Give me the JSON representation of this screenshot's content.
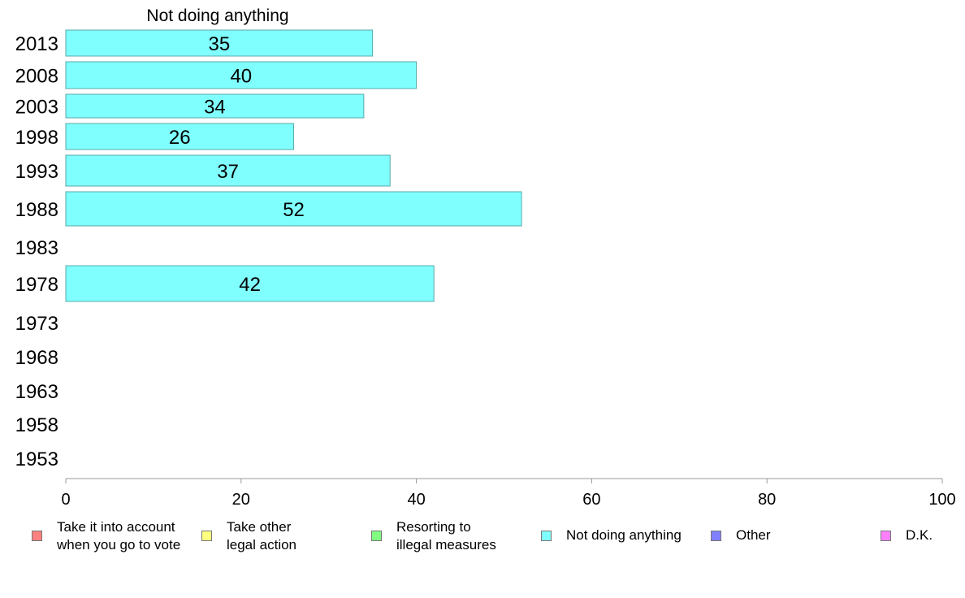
{
  "chart_data": {
    "type": "bar",
    "orientation": "horizontal",
    "title": "Not doing anything",
    "categories": [
      "2013",
      "2008",
      "2003",
      "1998",
      "1993",
      "1988",
      "1983",
      "1978",
      "1973",
      "1968",
      "1963",
      "1958",
      "1953"
    ],
    "series": [
      {
        "name": "Not doing anything",
        "color": "#80ffff",
        "values": [
          35,
          40,
          34,
          26,
          37,
          52,
          null,
          42,
          null,
          null,
          null,
          null,
          null
        ]
      }
    ],
    "xlim": [
      0,
      100
    ],
    "xticks": [
      0,
      20,
      40,
      60,
      80,
      100
    ],
    "grid": false,
    "legend_position": "bottom",
    "legend": [
      {
        "label": "Take it into account\nwhen you go to vote",
        "color": "#ff8080"
      },
      {
        "label": "Take other\nlegal action",
        "color": "#ffff80"
      },
      {
        "label": "Resorting to\nillegal measures",
        "color": "#80ff80"
      },
      {
        "label": "Not doing anything",
        "color": "#80ffff"
      },
      {
        "label": "Other",
        "color": "#8080ff"
      },
      {
        "label": "D.K.",
        "color": "#ff80ff"
      }
    ]
  }
}
